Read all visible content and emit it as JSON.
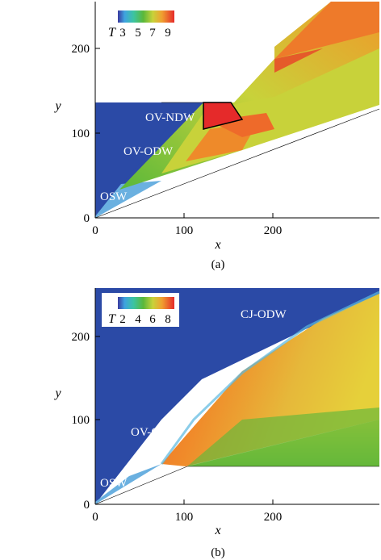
{
  "figure": {
    "panels": [
      {
        "id": "a",
        "label": "(a)",
        "xlabel": "x",
        "ylabel": "y",
        "xticks": [
          "0",
          "100",
          "200"
        ],
        "yticks": [
          "0",
          "100",
          "200"
        ],
        "legend": {
          "symbol": "T",
          "values": [
            "3",
            "5",
            "7",
            "9"
          ]
        },
        "annotations": [
          "OV-NDW",
          "OV-ODW",
          "OSW"
        ]
      },
      {
        "id": "b",
        "label": "(b)",
        "xlabel": "x",
        "ylabel": "y",
        "xticks": [
          "0",
          "100",
          "200"
        ],
        "yticks": [
          "0",
          "100",
          "200"
        ],
        "legend": {
          "symbol": "T",
          "values": [
            "2",
            "4",
            "6",
            "8"
          ]
        },
        "annotations": [
          "CJ-ODW",
          "OV-ODW",
          "OSW"
        ]
      }
    ],
    "colors": {
      "cold": "#2b4aa6",
      "green": "#5ab83a",
      "yellow": "#d8d63a",
      "orange": "#ee7a2a",
      "red": "#e52a2a"
    }
  }
}
